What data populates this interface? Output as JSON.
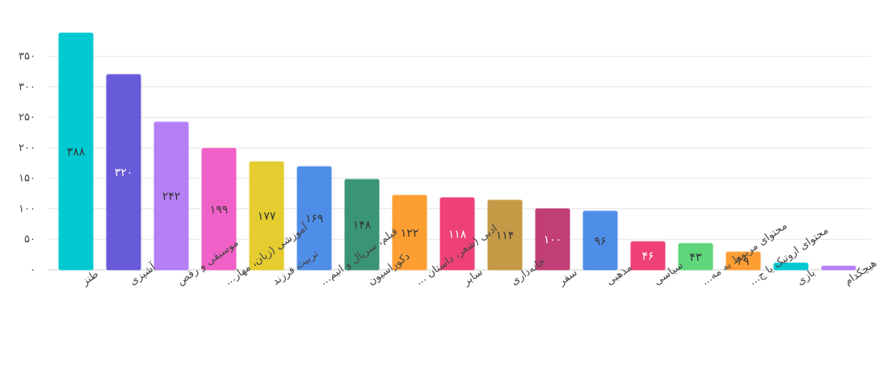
{
  "chart_data": {
    "type": "bar",
    "title": "",
    "xlabel": "",
    "ylabel": "",
    "ylim": [
      0,
      388
    ],
    "yticks": [
      0,
      50,
      100,
      150,
      200,
      250,
      300,
      350
    ],
    "ytick_labels": [
      "۰",
      "۵۰",
      "۱۰۰",
      "۱۵۰",
      "۲۰۰",
      "۲۵۰",
      "۳۰۰",
      "۳۵۰"
    ],
    "grid": true,
    "legend": "none",
    "categories": [
      "طنز",
      "آشپزی",
      "موسیقی و رقص",
      "آموزشی (زبان، مهار...",
      "تربیت فرزند",
      "فیلم، سریال و انیم...",
      "دکوراسیون",
      "ادبی (شعر، داستان ...",
      "سایر",
      "خانه‌داری",
      "سفر",
      "مذهبی",
      "سیاسی",
      "محتوای مربوط به مه...",
      "محتوای اروتیک یا ج...",
      "بازی",
      "هیچکدام"
    ],
    "values": [
      388,
      320,
      242,
      199,
      177,
      169,
      148,
      122,
      118,
      114,
      100,
      96,
      46,
      43,
      29,
      11,
      6
    ],
    "value_labels": [
      "۳۸۸",
      "۳۲۰",
      "۲۴۲",
      "۱۹۹",
      "۱۷۷",
      "۱۶۹",
      "۱۴۸",
      "۱۲۲",
      "۱۱۸",
      "۱۱۴",
      "۱۰۰",
      "۹۶",
      "۴۶",
      "۴۳",
      "۲۹",
      "",
      ""
    ],
    "colors": [
      "#00c9d2",
      "#675bd9",
      "#b57ff5",
      "#f061c7",
      "#e5cc2f",
      "#4f8ee8",
      "#3a9476",
      "#fd9e33",
      "#ee4277",
      "#c49a47",
      "#c23e76",
      "#4f8ee8",
      "#ee4277",
      "#5fd67a",
      "#fd9e33",
      "#00c9d2",
      "#b57ff5"
    ],
    "label_colors": [
      "#333333",
      "#ffffff",
      "#333333",
      "#333333",
      "#333333",
      "#333333",
      "#333333",
      "#333333",
      "#ffffff",
      "#333333",
      "#ffffff",
      "#333333",
      "#ffffff",
      "#333333",
      "#333333",
      "#333333",
      "#333333"
    ]
  }
}
